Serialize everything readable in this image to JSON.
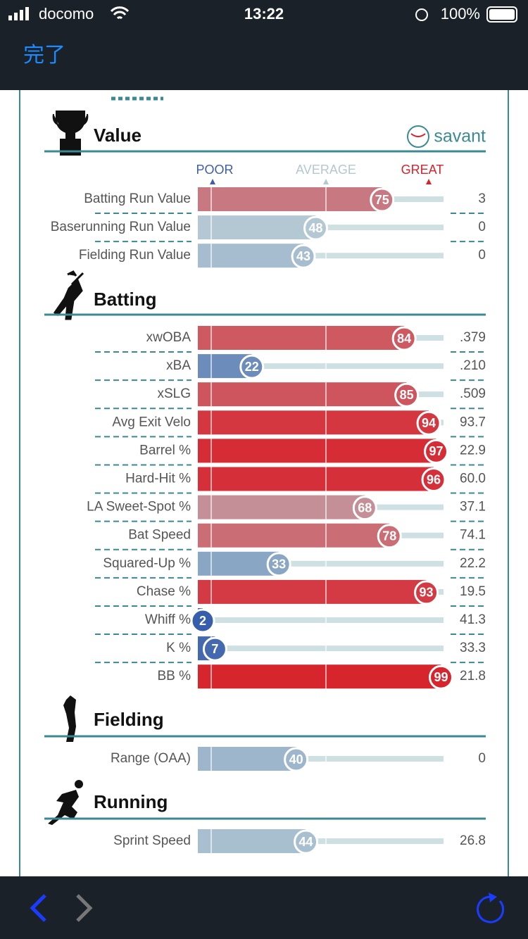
{
  "status_bar": {
    "carrier": "docomo",
    "time": "13:22",
    "battery": "100%"
  },
  "nav": {
    "done": "完了"
  },
  "brand": "savant",
  "legend": {
    "poor": "POOR",
    "average": "AVERAGE",
    "great": "GREAT"
  },
  "sections": [
    {
      "title": "Value",
      "rows": [
        {
          "label": "Batting Run Value",
          "percentile": 75,
          "value": "3"
        },
        {
          "label": "Baserunning Run Value",
          "percentile": 48,
          "value": "0"
        },
        {
          "label": "Fielding Run Value",
          "percentile": 43,
          "value": "0"
        }
      ]
    },
    {
      "title": "Batting",
      "rows": [
        {
          "label": "xwOBA",
          "percentile": 84,
          "value": ".379"
        },
        {
          "label": "xBA",
          "percentile": 22,
          "value": ".210"
        },
        {
          "label": "xSLG",
          "percentile": 85,
          "value": ".509"
        },
        {
          "label": "Avg Exit Velo",
          "percentile": 94,
          "value": "93.7"
        },
        {
          "label": "Barrel %",
          "percentile": 97,
          "value": "22.9"
        },
        {
          "label": "Hard-Hit %",
          "percentile": 96,
          "value": "60.0"
        },
        {
          "label": "LA Sweet-Spot %",
          "percentile": 68,
          "value": "37.1"
        },
        {
          "label": "Bat Speed",
          "percentile": 78,
          "value": "74.1"
        },
        {
          "label": "Squared-Up %",
          "percentile": 33,
          "value": "22.2"
        },
        {
          "label": "Chase %",
          "percentile": 93,
          "value": "19.5"
        },
        {
          "label": "Whiff %",
          "percentile": 2,
          "value": "41.3"
        },
        {
          "label": "K %",
          "percentile": 7,
          "value": "33.3"
        },
        {
          "label": "BB %",
          "percentile": 99,
          "value": "21.8"
        }
      ]
    },
    {
      "title": "Fielding",
      "rows": [
        {
          "label": "Range (OAA)",
          "percentile": 40,
          "value": "0"
        }
      ]
    },
    {
      "title": "Running",
      "rows": [
        {
          "label": "Sprint Speed",
          "percentile": 44,
          "value": "26.8"
        }
      ]
    }
  ]
}
